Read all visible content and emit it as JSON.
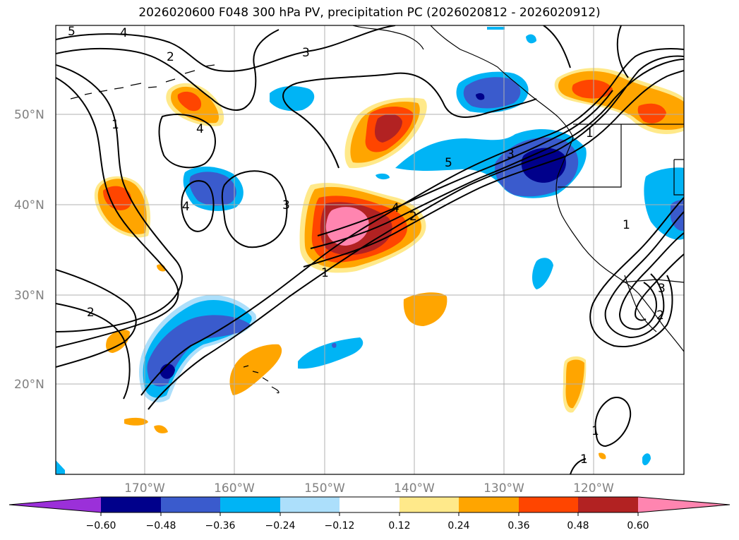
{
  "title": "2026020600 F048 300 hPa PV, precipitation PC (2026020812 - 2026020912)",
  "map": {
    "lat_labels": [
      "50°N",
      "40°N",
      "30°N",
      "20°N"
    ],
    "lon_labels": [
      "170°W",
      "160°W",
      "150°W",
      "140°W",
      "130°W",
      "120°W"
    ],
    "contour_labels": [
      "5",
      "4",
      "2",
      "3",
      "1",
      "4",
      "4",
      "3",
      "5",
      "3",
      "1",
      "4",
      "2",
      "1",
      "2",
      "1",
      "3",
      "2",
      "1",
      "1"
    ]
  },
  "colorbar": {
    "ticks": [
      "−0.60",
      "−0.48",
      "−0.36",
      "−0.24",
      "−0.12",
      "0.12",
      "0.24",
      "0.36",
      "0.48",
      "0.60"
    ],
    "colors": [
      "#9b30d9",
      "#00008b",
      "#3a5bcd",
      "#00b4f5",
      "#acdffb",
      "#ffffff",
      "#ffe98a",
      "#ffa500",
      "#ff4500",
      "#b22222",
      "#ff85b0"
    ]
  },
  "colors": {
    "grid": "#b0b0b0",
    "coast": "#000000",
    "pv_contour": "#000000"
  }
}
